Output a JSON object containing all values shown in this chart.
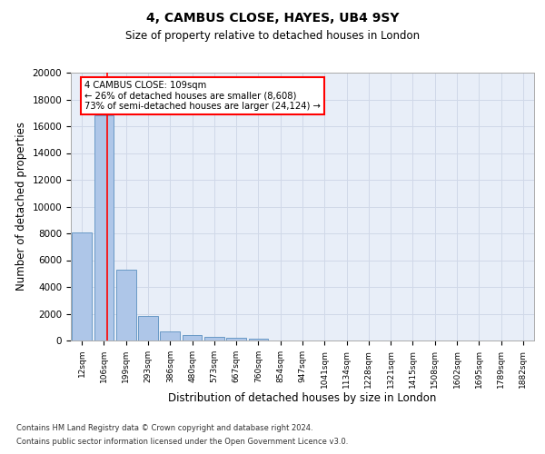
{
  "title1": "4, CAMBUS CLOSE, HAYES, UB4 9SY",
  "title2": "Size of property relative to detached houses in London",
  "xlabel": "Distribution of detached houses by size in London",
  "ylabel": "Number of detached properties",
  "bar_labels": [
    "12sqm",
    "106sqm",
    "199sqm",
    "293sqm",
    "386sqm",
    "480sqm",
    "573sqm",
    "667sqm",
    "760sqm",
    "854sqm",
    "947sqm",
    "1041sqm",
    "1134sqm",
    "1228sqm",
    "1321sqm",
    "1415sqm",
    "1508sqm",
    "1602sqm",
    "1695sqm",
    "1789sqm",
    "1882sqm"
  ],
  "bar_values": [
    8100,
    16800,
    5300,
    1800,
    700,
    380,
    290,
    210,
    160,
    0,
    0,
    0,
    0,
    0,
    0,
    0,
    0,
    0,
    0,
    0,
    0
  ],
  "bar_color": "#aec6e8",
  "bar_edgecolor": "#5a8fc0",
  "ylim": [
    0,
    20000
  ],
  "yticks": [
    0,
    2000,
    4000,
    6000,
    8000,
    10000,
    12000,
    14000,
    16000,
    18000,
    20000
  ],
  "annotation_line1": "4 CAMBUS CLOSE: 109sqm",
  "annotation_line2": "← 26% of detached houses are smaller (8,608)",
  "annotation_line3": "73% of semi-detached houses are larger (24,124) →",
  "vline_x_index": 1.15,
  "footnote1": "Contains HM Land Registry data © Crown copyright and database right 2024.",
  "footnote2": "Contains public sector information licensed under the Open Government Licence v3.0.",
  "bg_color": "#ffffff",
  "grid_color": "#d0d8e8",
  "ax_bg_color": "#e8eef8"
}
